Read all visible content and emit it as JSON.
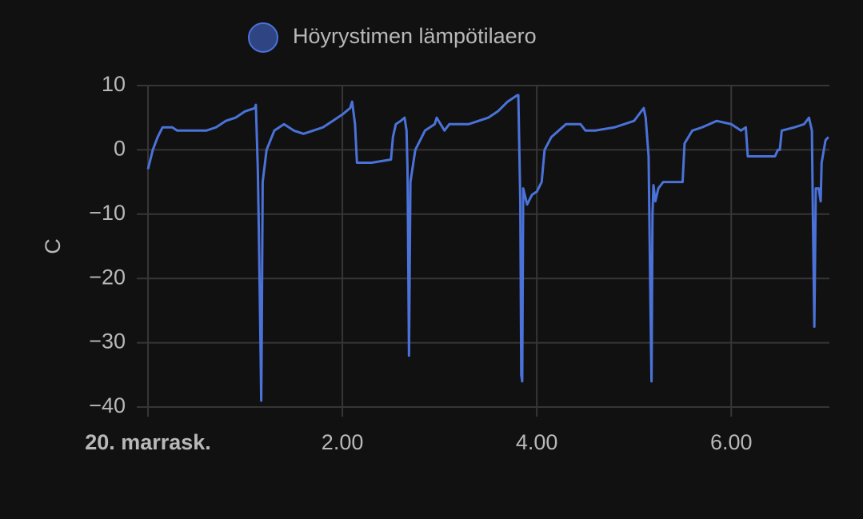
{
  "chart_data": {
    "type": "line",
    "legend": "Höyrystimen lämpötilaero",
    "ylabel": "C",
    "x": [
      0,
      0.05,
      0.1,
      0.15,
      0.25,
      0.3,
      0.6,
      0.7,
      0.8,
      0.9,
      1.0,
      1.1,
      1.11,
      1.13,
      1.14,
      1.16,
      1.165,
      1.17,
      1.18,
      1.22,
      1.3,
      1.4,
      1.5,
      1.6,
      1.7,
      1.8,
      1.9,
      2.0,
      2.08,
      2.1,
      2.13,
      2.15,
      2.3,
      2.5,
      2.52,
      2.55,
      2.6,
      2.64,
      2.66,
      2.67,
      2.675,
      2.685,
      2.7,
      2.75,
      2.85,
      2.95,
      2.97,
      3.05,
      3.1,
      3.3,
      3.4,
      3.5,
      3.6,
      3.7,
      3.8,
      3.81,
      3.83,
      3.84,
      3.85,
      3.86,
      3.9,
      3.95,
      4.0,
      4.05,
      4.08,
      4.15,
      4.3,
      4.45,
      4.5,
      4.6,
      4.8,
      5.0,
      5.1,
      5.12,
      5.15,
      5.17,
      5.18,
      5.19,
      5.2,
      5.22,
      5.25,
      5.3,
      5.5,
      5.52,
      5.6,
      5.7,
      5.85,
      6.0,
      6.1,
      6.15,
      6.17,
      6.3,
      6.45,
      6.48,
      6.5,
      6.52,
      6.65,
      6.75,
      6.8,
      6.83,
      6.84,
      6.855,
      6.87,
      6.9,
      6.92,
      6.93,
      6.97,
      7.0
    ],
    "series": [
      {
        "name": "Höyrystimen lämpötilaero",
        "color": "#4a72d8",
        "values": [
          -3,
          0,
          2,
          3.5,
          3.5,
          3,
          3,
          3.5,
          4.5,
          5,
          6,
          6.5,
          7,
          -3,
          -12,
          -33,
          -39,
          -30,
          -5,
          0,
          3,
          4,
          3,
          2.5,
          3,
          3.5,
          4.5,
          5.5,
          6.5,
          7.5,
          4,
          -2,
          -2,
          -1.5,
          2,
          4,
          4.5,
          5,
          3,
          -3,
          -12,
          -32,
          -5,
          0,
          3,
          4,
          5,
          3,
          4,
          4,
          4.5,
          5,
          6,
          7.5,
          8.5,
          8.5,
          -8,
          -35,
          -36,
          -6,
          -8.5,
          -7,
          -6.5,
          -5,
          0,
          2,
          4,
          4,
          3,
          3,
          3.5,
          4.5,
          6.5,
          5,
          -1,
          -25,
          -36,
          -10,
          -5.5,
          -8,
          -6,
          -5,
          -5,
          1,
          3,
          3.5,
          4.5,
          4,
          3,
          3.5,
          -1,
          -1,
          -1,
          0,
          0,
          3,
          3.5,
          4,
          5,
          3,
          -10,
          -27.5,
          -6,
          -6,
          -8,
          -2,
          1.5,
          2
        ]
      }
    ],
    "xlim": [
      0,
      7.01
    ],
    "xticks": [
      {
        "value": 0,
        "label": "20. marrask."
      },
      {
        "value": 2,
        "label": "2.00"
      },
      {
        "value": 4,
        "label": "4.00"
      },
      {
        "value": 6,
        "label": "6.00"
      }
    ],
    "ylim": [
      -40,
      10
    ],
    "yticks": [
      10,
      0,
      {
        "value": -10,
        "label": "−10"
      },
      {
        "value": -20,
        "label": "−20"
      },
      {
        "value": -30,
        "label": "−30"
      },
      {
        "value": -40,
        "label": "−40"
      }
    ],
    "grid": true
  }
}
